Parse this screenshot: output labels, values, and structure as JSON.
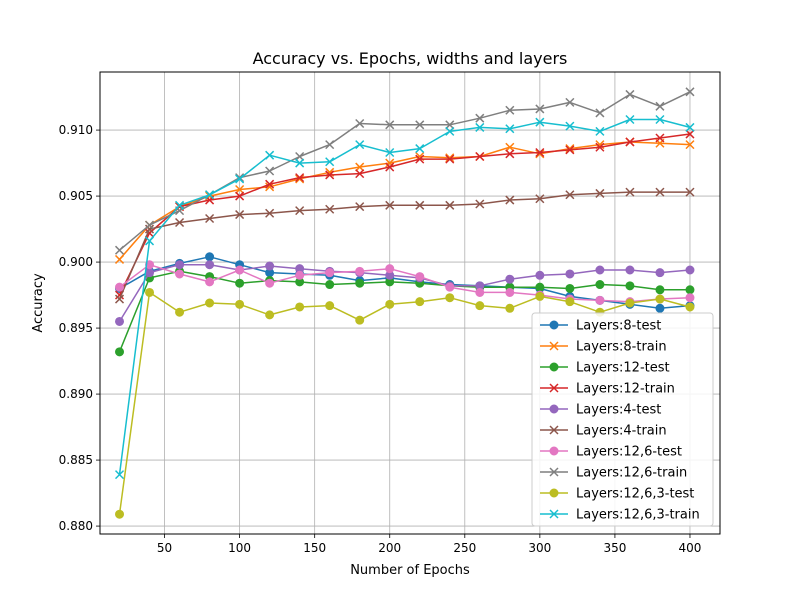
{
  "chart_data": {
    "type": "line",
    "title": "Accuracy vs. Epochs, widths and layers",
    "xlabel": "Number of Epochs",
    "ylabel": "Accuracy",
    "xlim": [
      7,
      420
    ],
    "ylim": [
      0.8794,
      0.9144
    ],
    "xticks": [
      50,
      100,
      150,
      200,
      250,
      300,
      350,
      400
    ],
    "yticks": [
      0.88,
      0.885,
      0.89,
      0.895,
      0.9,
      0.905,
      0.91
    ],
    "ytick_labels": [
      "0.880",
      "0.885",
      "0.890",
      "0.895",
      "0.900",
      "0.905",
      "0.910"
    ],
    "grid": true,
    "legend_position": "lower-right",
    "x": [
      20,
      40,
      60,
      80,
      100,
      120,
      140,
      160,
      180,
      200,
      220,
      240,
      260,
      280,
      300,
      320,
      340,
      360,
      380,
      400
    ],
    "series": [
      {
        "name": "Layers:8-test",
        "color": "#1f77b4",
        "marker": "circle",
        "values": [
          0.898,
          0.8993,
          0.8999,
          0.9004,
          0.8998,
          0.8992,
          0.8991,
          0.899,
          0.8986,
          0.8988,
          0.8985,
          0.8983,
          0.8982,
          0.8981,
          0.898,
          0.8974,
          0.8971,
          0.8968,
          0.8965,
          0.8967
        ]
      },
      {
        "name": "Layers:8-train",
        "color": "#ff7f0e",
        "marker": "x",
        "values": [
          0.9002,
          0.9028,
          0.9042,
          0.905,
          0.9055,
          0.9057,
          0.9063,
          0.9068,
          0.9072,
          0.9075,
          0.908,
          0.9079,
          0.908,
          0.9087,
          0.9082,
          0.9086,
          0.9089,
          0.9091,
          0.909,
          0.9089
        ]
      },
      {
        "name": "Layers:12-test",
        "color": "#2ca02c",
        "marker": "circle",
        "values": [
          0.8932,
          0.8988,
          0.8993,
          0.8989,
          0.8984,
          0.8986,
          0.8985,
          0.8983,
          0.8984,
          0.8985,
          0.8984,
          0.8982,
          0.8981,
          0.8981,
          0.8981,
          0.898,
          0.8983,
          0.8982,
          0.8979,
          0.8979
        ]
      },
      {
        "name": "Layers:12-train",
        "color": "#d62728",
        "marker": "x",
        "values": [
          0.8975,
          0.9022,
          0.9042,
          0.9047,
          0.905,
          0.9059,
          0.9064,
          0.9066,
          0.9067,
          0.9072,
          0.9078,
          0.9078,
          0.908,
          0.9082,
          0.9083,
          0.9085,
          0.9087,
          0.9091,
          0.9094,
          0.9097
        ]
      },
      {
        "name": "Layers:4-test",
        "color": "#9467bd",
        "marker": "circle",
        "values": [
          0.8955,
          0.8992,
          0.8998,
          0.8998,
          0.8994,
          0.8997,
          0.8995,
          0.8993,
          0.8992,
          0.899,
          0.8988,
          0.8982,
          0.8982,
          0.8987,
          0.899,
          0.8991,
          0.8994,
          0.8994,
          0.8992,
          0.8994
        ]
      },
      {
        "name": "Layers:4-train",
        "color": "#8c564b",
        "marker": "x",
        "values": [
          0.8972,
          0.9025,
          0.903,
          0.9033,
          0.9036,
          0.9037,
          0.9039,
          0.904,
          0.9042,
          0.9043,
          0.9043,
          0.9043,
          0.9044,
          0.9047,
          0.9048,
          0.9051,
          0.9052,
          0.9053,
          0.9053,
          0.9053
        ]
      },
      {
        "name": "Layers:12,6-test",
        "color": "#e377c2",
        "marker": "circle",
        "values": [
          0.8981,
          0.8998,
          0.8991,
          0.8985,
          0.8994,
          0.8984,
          0.899,
          0.8992,
          0.8993,
          0.8995,
          0.8989,
          0.8981,
          0.8977,
          0.8977,
          0.8975,
          0.8972,
          0.8971,
          0.897,
          0.8972,
          0.8973
        ]
      },
      {
        "name": "Layers:12,6-train",
        "color": "#7f7f7f",
        "marker": "x",
        "values": [
          0.9009,
          0.9028,
          0.9039,
          0.9051,
          0.9064,
          0.9069,
          0.908,
          0.9089,
          0.9105,
          0.9104,
          0.9104,
          0.9104,
          0.9109,
          0.9115,
          0.9116,
          0.9121,
          0.9113,
          0.9127,
          0.9118,
          0.9129
        ]
      },
      {
        "name": "Layers:12,6,3-test",
        "color": "#bcbd22",
        "marker": "circle",
        "values": [
          0.8809,
          0.8977,
          0.8962,
          0.8969,
          0.8968,
          0.896,
          0.8966,
          0.8967,
          0.8956,
          0.8968,
          0.897,
          0.8973,
          0.8967,
          0.8965,
          0.8974,
          0.897,
          0.8962,
          0.8969,
          0.8972,
          0.8966
        ]
      },
      {
        "name": "Layers:12,6,3-train",
        "color": "#17becf",
        "marker": "x",
        "values": [
          0.8839,
          0.9016,
          0.9043,
          0.9051,
          0.9063,
          0.9081,
          0.9075,
          0.9076,
          0.9089,
          0.9083,
          0.9086,
          0.9099,
          0.9102,
          0.9101,
          0.9106,
          0.9103,
          0.9099,
          0.9108,
          0.9108,
          0.9102
        ]
      }
    ]
  }
}
